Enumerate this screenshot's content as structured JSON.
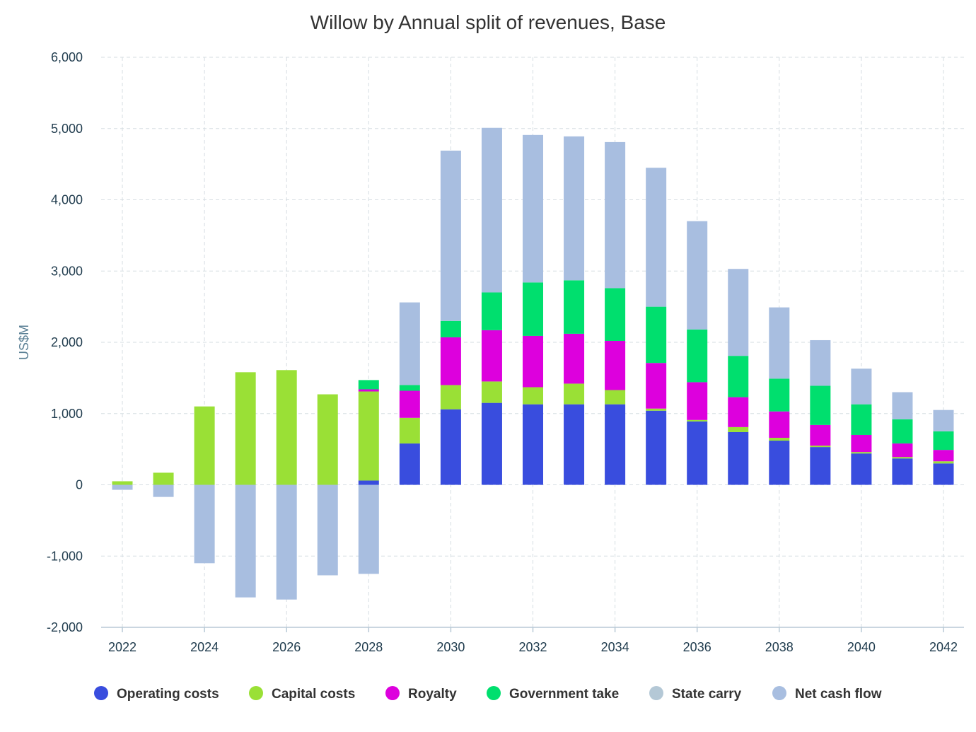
{
  "chart_data": {
    "type": "bar",
    "stacked": true,
    "title": "Willow by Annual split of revenues, Base",
    "xlabel": "",
    "ylabel": "US$M",
    "ylim": [
      -2000,
      6000
    ],
    "yticks": [
      -2000,
      -1000,
      0,
      1000,
      2000,
      3000,
      4000,
      5000,
      6000
    ],
    "ytick_labels": [
      "-2,000",
      "-1,000",
      "0",
      "1,000",
      "2,000",
      "3,000",
      "4,000",
      "5,000",
      "6,000"
    ],
    "xtick_labels": [
      "2022",
      "2024",
      "2026",
      "2028",
      "2030",
      "2032",
      "2034",
      "2036",
      "2038",
      "2040",
      "2042"
    ],
    "grid": true,
    "legend_position": "bottom",
    "categories": [
      "2022",
      "2023",
      "2024",
      "2025",
      "2026",
      "2027",
      "2028",
      "2029",
      "2030",
      "2031",
      "2032",
      "2033",
      "2034",
      "2035",
      "2036",
      "2037",
      "2038",
      "2039",
      "2040",
      "2041",
      "2042"
    ],
    "series": [
      {
        "name": "Operating costs",
        "color": "#394dde",
        "values": [
          0,
          0,
          0,
          0,
          0,
          0,
          60,
          580,
          1060,
          1150,
          1130,
          1130,
          1130,
          1040,
          890,
          740,
          620,
          530,
          440,
          370,
          300
        ]
      },
      {
        "name": "Capital costs",
        "color": "#9ae036",
        "values": [
          50,
          170,
          1100,
          1580,
          1610,
          1270,
          1250,
          360,
          340,
          300,
          240,
          290,
          200,
          30,
          20,
          70,
          40,
          20,
          20,
          20,
          30
        ]
      },
      {
        "name": "Royalty",
        "color": "#dd00dd",
        "values": [
          0,
          0,
          0,
          0,
          0,
          0,
          30,
          380,
          670,
          720,
          720,
          700,
          690,
          640,
          530,
          420,
          370,
          290,
          240,
          190,
          160
        ]
      },
      {
        "name": "Government take",
        "color": "#00df6e",
        "values": [
          0,
          0,
          0,
          0,
          0,
          0,
          130,
          80,
          230,
          530,
          750,
          750,
          740,
          790,
          740,
          580,
          460,
          550,
          430,
          340,
          260
        ]
      },
      {
        "name": "State carry",
        "color": "#b4c8d6",
        "values": [
          0,
          0,
          0,
          0,
          0,
          0,
          0,
          0,
          0,
          0,
          0,
          0,
          0,
          0,
          0,
          0,
          0,
          0,
          0,
          0,
          0
        ]
      },
      {
        "name": "Net cash flow",
        "color": "#a8bee0",
        "values": [
          -70,
          -170,
          -1100,
          -1580,
          -1610,
          -1270,
          -1250,
          1160,
          2390,
          2310,
          2070,
          2020,
          2050,
          1950,
          1520,
          1220,
          1000,
          640,
          500,
          380,
          300
        ]
      }
    ],
    "legend": [
      {
        "name": "Operating costs",
        "color": "#394dde",
        "active": true
      },
      {
        "name": "Capital costs",
        "color": "#9ae036",
        "active": true
      },
      {
        "name": "Royalty",
        "color": "#dd00dd",
        "active": true
      },
      {
        "name": "Government take",
        "color": "#00df6e",
        "active": true
      },
      {
        "name": "State carry",
        "color": "#b4c8d6",
        "active": false
      },
      {
        "name": "Net cash flow",
        "color": "#a8bee0",
        "active": true
      }
    ]
  }
}
